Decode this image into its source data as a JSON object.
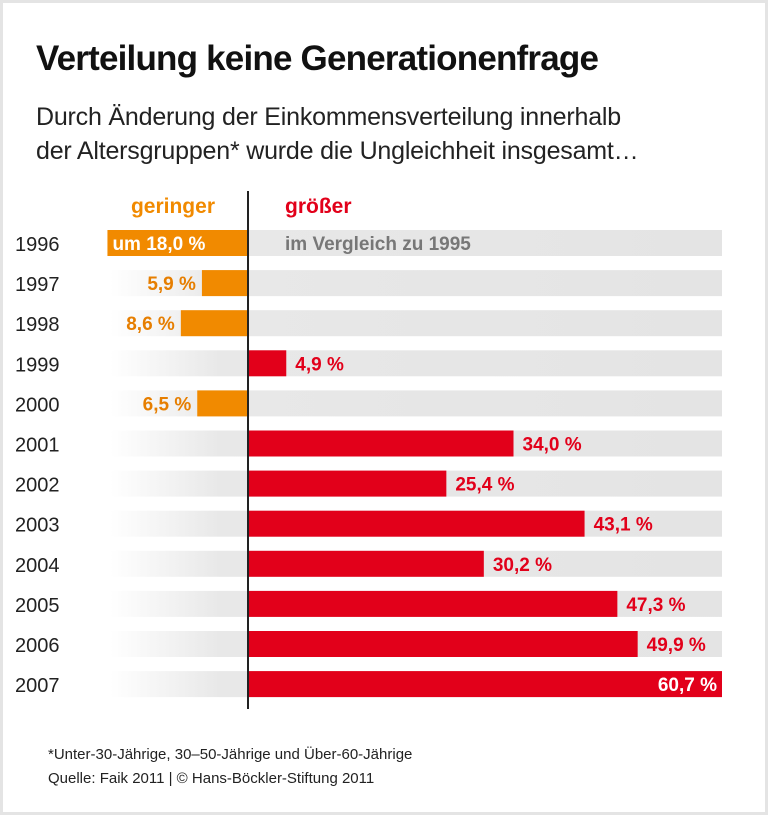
{
  "chart_data": {
    "type": "bar",
    "orientation": "horizontal",
    "title": "Verteilung keine Generationenfrage",
    "subtitle": [
      "Durch Änderung der Einkommensverteilung innerhalb",
      "der Altersgruppen* wurde die Ungleichheit insgesamt…"
    ],
    "negative_side_label": "geringer",
    "positive_side_label": "größer",
    "reference_note": "im Vergleich zu 1995",
    "unit": "%",
    "categories": [
      "1996",
      "1997",
      "1998",
      "1999",
      "2000",
      "2001",
      "2002",
      "2003",
      "2004",
      "2005",
      "2006",
      "2007"
    ],
    "values": [
      -18.0,
      -5.9,
      -8.6,
      4.9,
      -6.5,
      34.0,
      25.4,
      43.1,
      30.2,
      47.3,
      49.9,
      60.7
    ],
    "data_labels": [
      "um 18,0 %",
      "5,9 %",
      "8,6 %",
      "4,9 %",
      "6,5 %",
      "34,0 %",
      "25,4 %",
      "43,1 %",
      "30,2 %",
      "47,3 %",
      "49,9 %",
      "60,7 %"
    ],
    "xlim": [
      -18.0,
      60.7
    ],
    "colors": {
      "negative": "#f18a00",
      "positive": "#e2001a",
      "row_background": "#e6e6e6",
      "negative_label": "#e67e00",
      "reference_note": "#777777"
    },
    "grid": false,
    "legend": "none"
  },
  "footnote": "*Unter-30-Jährige, 30–50-Jährige und Über-60-Jährige",
  "source": "Quelle: Faik 2011 | © Hans-Böckler-Stiftung 2011"
}
